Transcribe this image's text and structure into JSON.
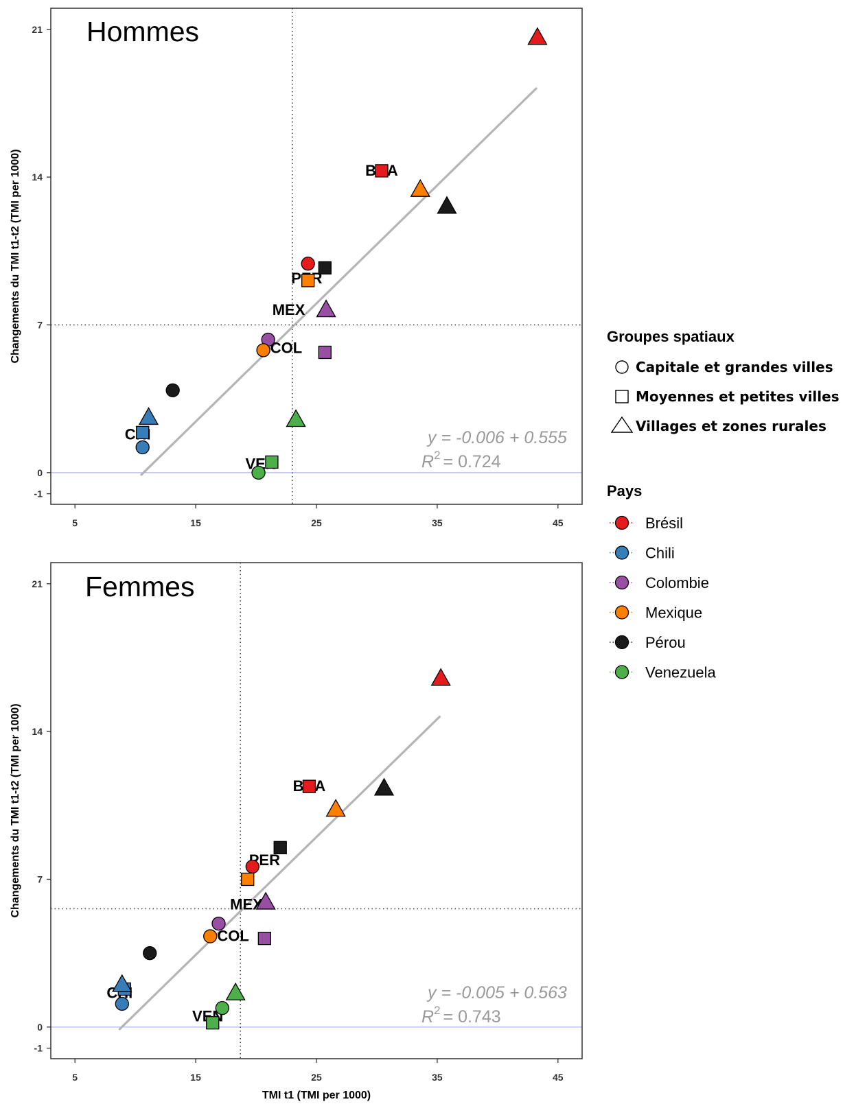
{
  "legend": {
    "shape_title": "Groupes spatiaux",
    "shapes": [
      {
        "label": "Capitale et grandes villes",
        "shape": "circle"
      },
      {
        "label": "Moyennes et petites villes",
        "shape": "square"
      },
      {
        "label": "Villages et zones rurales",
        "shape": "triangle"
      }
    ],
    "color_title": "Pays",
    "countries": [
      {
        "label": "Brésil",
        "color": "#e41a1c"
      },
      {
        "label": "Chili",
        "color": "#377eb8"
      },
      {
        "label": "Colombie",
        "color": "#984ea3"
      },
      {
        "label": "Mexique",
        "color": "#ff7f00"
      },
      {
        "label": "Pérou",
        "color": "#1a1a1a"
      },
      {
        "label": "Venezuela",
        "color": "#4daf4a"
      }
    ]
  },
  "chart_data": [
    {
      "type": "scatter",
      "title": "Hommes",
      "xlabel": "",
      "ylabel": "Changements du TMI t1-t2 (TMI per 1000)",
      "xlim": [
        3,
        47
      ],
      "ylim": [
        -1.5,
        22
      ],
      "xticks": [
        "5",
        "15",
        "25",
        "35",
        "45"
      ],
      "yticks": [
        "-1",
        "0",
        "7",
        "14",
        "21"
      ],
      "vline": 23,
      "hline": 7,
      "zeroline": 0,
      "regression": {
        "x_start": 10.5,
        "x_end": 43.2,
        "y_start": -0.1,
        "y_end": 18.2
      },
      "equation": "y = -0.006 + 0.555",
      "r2_label": "R",
      "r2_sup": "2",
      "r2_value": "= 0.724",
      "points": [
        {
          "x": 24.3,
          "y": 9.9,
          "country": "Brésil",
          "shape": "circle"
        },
        {
          "x": 30.4,
          "y": 14.3,
          "country": "Brésil",
          "shape": "square"
        },
        {
          "x": 43.3,
          "y": 20.6,
          "country": "Brésil",
          "shape": "triangle"
        },
        {
          "x": 10.6,
          "y": 1.2,
          "country": "Chili",
          "shape": "circle"
        },
        {
          "x": 10.6,
          "y": 1.9,
          "country": "Chili",
          "shape": "square"
        },
        {
          "x": 11.1,
          "y": 2.6,
          "country": "Chili",
          "shape": "triangle"
        },
        {
          "x": 21.0,
          "y": 6.3,
          "country": "Colombie",
          "shape": "circle"
        },
        {
          "x": 25.7,
          "y": 5.7,
          "country": "Colombie",
          "shape": "square"
        },
        {
          "x": 25.8,
          "y": 7.7,
          "country": "Colombie",
          "shape": "triangle"
        },
        {
          "x": 20.6,
          "y": 5.8,
          "country": "Mexique",
          "shape": "circle"
        },
        {
          "x": 24.3,
          "y": 9.1,
          "country": "Mexique",
          "shape": "square"
        },
        {
          "x": 33.6,
          "y": 13.4,
          "country": "Mexique",
          "shape": "triangle"
        },
        {
          "x": 13.1,
          "y": 3.9,
          "country": "Pérou",
          "shape": "circle"
        },
        {
          "x": 25.7,
          "y": 9.7,
          "country": "Pérou",
          "shape": "square"
        },
        {
          "x": 35.8,
          "y": 12.6,
          "country": "Pérou",
          "shape": "triangle"
        },
        {
          "x": 20.2,
          "y": 0.0,
          "country": "Venezuela",
          "shape": "circle"
        },
        {
          "x": 21.3,
          "y": 0.5,
          "country": "Venezuela",
          "shape": "square"
        },
        {
          "x": 23.3,
          "y": 2.5,
          "country": "Venezuela",
          "shape": "triangle"
        }
      ],
      "labels": [
        {
          "text": "BRA",
          "x": 30.4,
          "y": 14.3
        },
        {
          "text": "PER",
          "x": 24.2,
          "y": 9.2
        },
        {
          "text": "MEX",
          "x": 22.7,
          "y": 7.7
        },
        {
          "text": "COL",
          "x": 22.5,
          "y": 5.9
        },
        {
          "text": "CHI",
          "x": 10.2,
          "y": 1.8
        },
        {
          "text": "VEN",
          "x": 20.4,
          "y": 0.4
        }
      ]
    },
    {
      "type": "scatter",
      "title": "Femmes",
      "xlabel": "TMI t1 (TMI per 1000)",
      "ylabel": "Changements du TMI t1-t2 (TMI per 1000)",
      "xlim": [
        3,
        47
      ],
      "ylim": [
        -1.5,
        22
      ],
      "xticks": [
        "5",
        "15",
        "25",
        "35",
        "45"
      ],
      "yticks": [
        "-1",
        "0",
        "7",
        "14",
        "21"
      ],
      "vline": 18.7,
      "hline": 5.6,
      "zeroline": 0,
      "regression": {
        "x_start": 8.7,
        "x_end": 35.2,
        "y_start": -0.1,
        "y_end": 14.7
      },
      "equation": "y = -0.005 + 0.563",
      "r2_label": "R",
      "r2_sup": "2",
      "r2_value": "= 0.743",
      "points": [
        {
          "x": 19.7,
          "y": 7.6,
          "country": "Brésil",
          "shape": "circle"
        },
        {
          "x": 24.4,
          "y": 11.4,
          "country": "Brésil",
          "shape": "square"
        },
        {
          "x": 35.3,
          "y": 16.5,
          "country": "Brésil",
          "shape": "triangle"
        },
        {
          "x": 8.9,
          "y": 1.1,
          "country": "Chili",
          "shape": "circle"
        },
        {
          "x": 9.1,
          "y": 1.8,
          "country": "Chili",
          "shape": "square"
        },
        {
          "x": 8.9,
          "y": 2.0,
          "country": "Chili",
          "shape": "triangle"
        },
        {
          "x": 16.9,
          "y": 4.9,
          "country": "Colombie",
          "shape": "circle"
        },
        {
          "x": 20.7,
          "y": 4.2,
          "country": "Colombie",
          "shape": "square"
        },
        {
          "x": 20.8,
          "y": 5.9,
          "country": "Colombie",
          "shape": "triangle"
        },
        {
          "x": 16.2,
          "y": 4.3,
          "country": "Mexique",
          "shape": "circle"
        },
        {
          "x": 19.3,
          "y": 7.0,
          "country": "Mexique",
          "shape": "square"
        },
        {
          "x": 26.6,
          "y": 10.3,
          "country": "Mexique",
          "shape": "triangle"
        },
        {
          "x": 11.2,
          "y": 3.5,
          "country": "Pérou",
          "shape": "circle"
        },
        {
          "x": 22.0,
          "y": 8.5,
          "country": "Pérou",
          "shape": "square"
        },
        {
          "x": 30.6,
          "y": 11.3,
          "country": "Pérou",
          "shape": "triangle"
        },
        {
          "x": 17.2,
          "y": 0.9,
          "country": "Venezuela",
          "shape": "circle"
        },
        {
          "x": 16.4,
          "y": 0.2,
          "country": "Venezuela",
          "shape": "square"
        },
        {
          "x": 18.3,
          "y": 1.6,
          "country": "Venezuela",
          "shape": "triangle"
        }
      ],
      "labels": [
        {
          "text": "BRA",
          "x": 24.4,
          "y": 11.4
        },
        {
          "text": "PER",
          "x": 20.7,
          "y": 7.9
        },
        {
          "text": "MEX",
          "x": 19.2,
          "y": 5.8
        },
        {
          "text": "COL",
          "x": 18.1,
          "y": 4.3
        },
        {
          "text": "CHI",
          "x": 8.7,
          "y": 1.6
        },
        {
          "text": "VEN",
          "x": 16.0,
          "y": 0.5
        }
      ]
    }
  ]
}
